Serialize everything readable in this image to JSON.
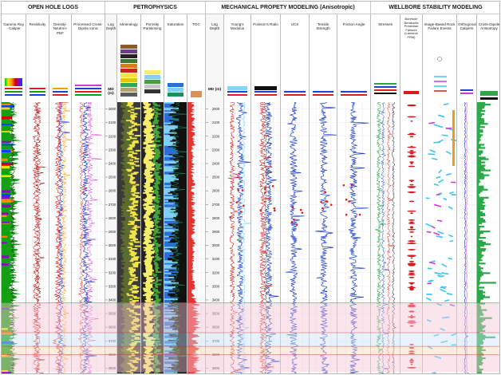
{
  "sections": [
    {
      "id": "ohl",
      "label": "OPEN HOLE LOGS"
    },
    {
      "id": "petro",
      "label": "PETROPHYSICS"
    },
    {
      "id": "mech",
      "label": "MECHANICAL PROPETY MODELING (Anisotropic)"
    },
    {
      "id": "wbs",
      "label": "WELLBORE STABILITY MODELING"
    }
  ],
  "depth_track": {
    "title": "Log Depth",
    "unit": "MD (m)"
  },
  "tracks": {
    "gr": {
      "title": "Gamma Ray - Caliper"
    },
    "res": {
      "title": "Resistivity"
    },
    "den": {
      "title": "Density-Neutron-PEF"
    },
    "pcd": {
      "title": "Processed Cross-Dipole sonic"
    },
    "lith": {
      "title": "Mineralogy"
    },
    "por": {
      "title": "Porosity Partitioning"
    },
    "sat": {
      "title": "Saturation"
    },
    "toc": {
      "title": "TOC"
    },
    "ym": {
      "title": "Young's Modulus"
    },
    "pr": {
      "title": "Poisson's Ratio"
    },
    "ucs": {
      "title": "UCS"
    },
    "ts": {
      "title": "Tensile Strength"
    },
    "fa": {
      "title": "Friction Angle"
    },
    "stress": {
      "title": "Stresses"
    },
    "bhb": {
      "title": "Borehole Breakouts Prediction Failures (Lamarck FRM)"
    },
    "img": {
      "title": "Image-Based Rock Failure Events"
    },
    "orth": {
      "title": "Orthogonal Calipers"
    },
    "cda": {
      "title": "Cross-Dipole Anisotropy"
    }
  },
  "chart_data": {
    "type": "line",
    "title": "",
    "depth_ticks": [
      2000,
      2100,
      2200,
      2300,
      2400,
      2500,
      2600,
      2700,
      2800,
      2900,
      3000,
      3100,
      3200,
      3300,
      3400,
      3500,
      3600,
      3700,
      3800,
      3900
    ],
    "depth_range_m": [
      1950,
      3950
    ],
    "zones": [
      {
        "top": 3420,
        "base": 3640,
        "color": "#f6c6d4"
      },
      {
        "top": 3640,
        "base": 3740,
        "color": "#cfe3f4"
      },
      {
        "top": 3740,
        "base": 3800,
        "color": "#f8d8b8"
      },
      {
        "top": 3800,
        "base": 3930,
        "color": "#f6c6d4"
      }
    ],
    "colors": {
      "gr_fill": "#14a014",
      "resistivity": "#e11d1d",
      "density": "#1f3fd0",
      "neutron": "#e11d1d",
      "pef": "#ff9c00",
      "sonic": "#1f3fd0",
      "toc": "#e11d1d",
      "ym": "#1f3fd0",
      "stress": "#2aa84a",
      "breakout": "#d41c1c",
      "image_events": "#35c6f4",
      "image_events_alt": "#d33cd3",
      "orange_bar": "#f39a1e"
    }
  }
}
